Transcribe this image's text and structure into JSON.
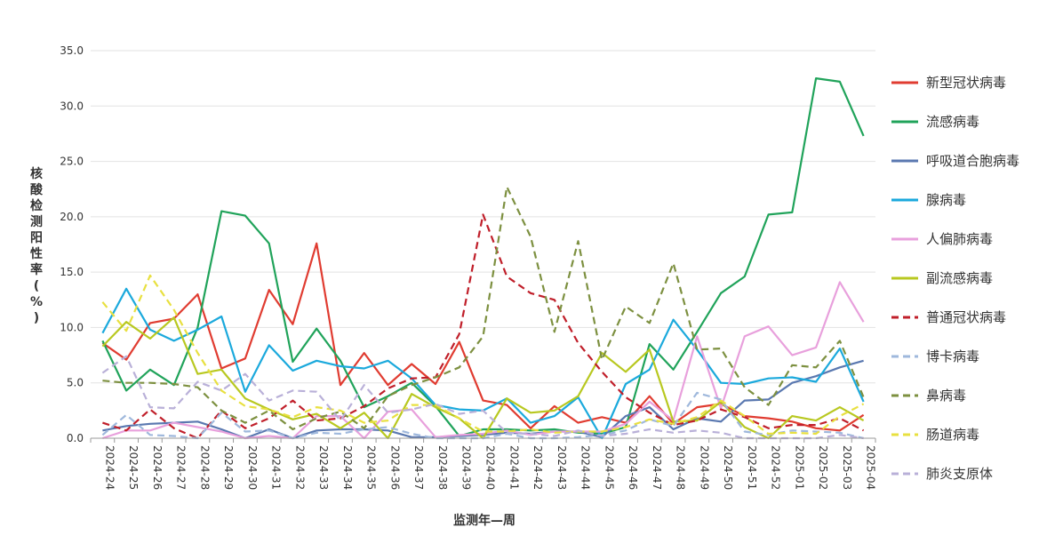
{
  "chart_data": {
    "type": "line",
    "title": "",
    "xlabel": "监测年—周",
    "ylabel": "核酸检测阳性率(%)",
    "ylim": [
      0,
      35
    ],
    "yticks": [
      "0.0",
      "5.0",
      "10.0",
      "15.0",
      "20.0",
      "25.0",
      "30.0",
      "35.0"
    ],
    "legend_position": "right",
    "categories": [
      "2024-24",
      "2024-25",
      "2024-26",
      "2024-27",
      "2024-28",
      "2024-29",
      "2024-30",
      "2024-31",
      "2024-32",
      "2024-33",
      "2024-34",
      "2024-35",
      "2024-36",
      "2024-37",
      "2024-38",
      "2024-39",
      "2024-40",
      "2024-41",
      "2024-42",
      "2024-43",
      "2024-44",
      "2024-45",
      "2024-46",
      "2024-47",
      "2024-48",
      "2024-49",
      "2024-50",
      "2024-51",
      "2024-52",
      "2025-01",
      "2025-02",
      "2025-03",
      "2025-04"
    ],
    "series": [
      {
        "name": "新型冠状病毒",
        "color": "#e03c31",
        "dash": false,
        "values": [
          8.6,
          7.1,
          10.4,
          10.8,
          13.0,
          6.3,
          7.2,
          13.4,
          10.3,
          17.6,
          4.8,
          7.7,
          4.8,
          6.7,
          4.9,
          8.7,
          3.4,
          3.0,
          0.9,
          2.9,
          1.4,
          1.9,
          1.4,
          3.8,
          1.3,
          2.8,
          3.1,
          2.0,
          1.8,
          1.5,
          0.9,
          0.7,
          2.1
        ]
      },
      {
        "name": "流感病毒",
        "color": "#20a35a",
        "dash": false,
        "values": [
          8.8,
          4.3,
          6.2,
          4.8,
          10.0,
          20.5,
          20.1,
          17.6,
          6.9,
          9.9,
          7.0,
          2.8,
          3.8,
          5.0,
          2.9,
          0.2,
          0.8,
          0.8,
          0.7,
          0.8,
          0.5,
          0.4,
          1.0,
          8.5,
          6.2,
          9.6,
          13.1,
          14.6,
          20.2,
          20.4,
          32.5,
          32.2,
          27.3
        ]
      },
      {
        "name": "呼吸道合胞病毒",
        "color": "#5a78b0",
        "dash": false,
        "values": [
          0.7,
          1.1,
          1.3,
          1.4,
          1.5,
          0.8,
          0.0,
          0.8,
          0.0,
          0.7,
          0.8,
          0.8,
          0.7,
          0.1,
          0.1,
          0.2,
          0.3,
          0.5,
          0.4,
          0.6,
          0.6,
          0.1,
          2.0,
          2.8,
          0.8,
          1.8,
          1.5,
          3.4,
          3.5,
          5.0,
          5.6,
          6.4,
          7.0
        ]
      },
      {
        "name": "腺病毒",
        "color": "#1ba9dc",
        "dash": false,
        "values": [
          9.5,
          13.5,
          9.8,
          8.8,
          9.8,
          11.0,
          4.2,
          8.4,
          6.1,
          7.0,
          6.5,
          6.3,
          7.0,
          5.4,
          3.0,
          2.6,
          2.5,
          3.6,
          1.4,
          2.0,
          3.7,
          0.0,
          4.9,
          6.2,
          10.7,
          8.0,
          5.0,
          4.9,
          5.4,
          5.5,
          5.1,
          8.1,
          3.3
        ]
      },
      {
        "name": "人偏肺病毒",
        "color": "#e8a0dc",
        "dash": false,
        "values": [
          0.0,
          0.7,
          0.7,
          1.4,
          1.0,
          0.6,
          0.0,
          0.2,
          0.0,
          2.0,
          2.0,
          0.0,
          2.4,
          2.6,
          0.1,
          0.3,
          0.4,
          0.7,
          0.3,
          0.6,
          0.6,
          0.6,
          1.3,
          3.3,
          1.6,
          9.2,
          2.7,
          9.2,
          10.1,
          7.5,
          8.2,
          14.1,
          10.5
        ]
      },
      {
        "name": "副流感病毒",
        "color": "#b8c820",
        "dash": false,
        "values": [
          8.3,
          10.5,
          9.0,
          10.9,
          5.8,
          6.2,
          3.6,
          2.6,
          1.7,
          2.2,
          0.9,
          2.3,
          0.0,
          4.0,
          2.8,
          1.8,
          0.0,
          3.6,
          2.3,
          2.5,
          3.8,
          7.7,
          6.0,
          8.0,
          1.5,
          1.6,
          3.3,
          1.0,
          0.0,
          2.0,
          1.6,
          2.8,
          1.6
        ]
      },
      {
        "name": "普通冠状病毒",
        "color": "#c01f2a",
        "dash": true,
        "values": [
          1.4,
          0.7,
          2.6,
          0.9,
          0.0,
          2.5,
          0.9,
          1.8,
          3.4,
          1.6,
          1.8,
          2.9,
          4.5,
          5.4,
          5.5,
          9.4,
          20.2,
          14.6,
          13.1,
          12.5,
          8.6,
          6.0,
          3.7,
          2.3,
          1.2,
          1.6,
          2.6,
          1.9,
          0.9,
          1.2,
          1.2,
          1.8,
          0.7
        ]
      },
      {
        "name": "博卡病毒",
        "color": "#9fb8dc",
        "dash": true,
        "values": [
          0.3,
          2.1,
          0.3,
          0.2,
          0.0,
          2.3,
          0.6,
          0.7,
          0.0,
          0.5,
          0.4,
          0.8,
          1.0,
          0.4,
          0.0,
          0.0,
          0.0,
          0.4,
          0.0,
          0.0,
          0.1,
          0.3,
          0.7,
          1.7,
          1.1,
          4.1,
          3.5,
          0.6,
          0.3,
          0.7,
          0.6,
          0.5,
          0.0
        ]
      },
      {
        "name": "鼻病毒",
        "color": "#7d9040",
        "dash": true,
        "values": [
          5.2,
          5.0,
          5.0,
          4.9,
          4.6,
          2.5,
          1.4,
          2.5,
          0.8,
          1.8,
          2.4,
          0.9,
          3.8,
          4.8,
          5.5,
          6.4,
          9.2,
          22.7,
          18.2,
          9.6,
          17.8,
          7.1,
          11.9,
          10.4,
          15.8,
          8.0,
          8.1,
          4.6,
          3.0,
          6.6,
          6.4,
          8.8,
          3.7
        ]
      },
      {
        "name": "肠道病毒",
        "color": "#e8e040",
        "dash": true,
        "values": [
          12.3,
          9.7,
          14.7,
          11.6,
          7.7,
          4.3,
          2.9,
          2.6,
          1.9,
          2.8,
          2.5,
          1.4,
          1.6,
          3.0,
          3.0,
          1.8,
          0.6,
          0.6,
          0.8,
          0.5,
          0.6,
          0.6,
          1.0,
          1.7,
          1.3,
          1.9,
          3.4,
          2.0,
          0.4,
          0.5,
          0.4,
          2.0,
          3.1
        ]
      },
      {
        "name": "肺炎支原体",
        "color": "#b9b0d8",
        "dash": true,
        "values": [
          5.9,
          7.4,
          2.8,
          2.7,
          5.1,
          4.3,
          5.8,
          3.4,
          4.3,
          4.2,
          1.6,
          4.8,
          2.3,
          2.6,
          3.1,
          2.2,
          2.5,
          0.5,
          0.4,
          0.2,
          0.7,
          0.2,
          0.4,
          0.8,
          0.5,
          0.7,
          0.5,
          0.0,
          0.0,
          0.0,
          0.0,
          0.3,
          0.0
        ]
      }
    ]
  }
}
